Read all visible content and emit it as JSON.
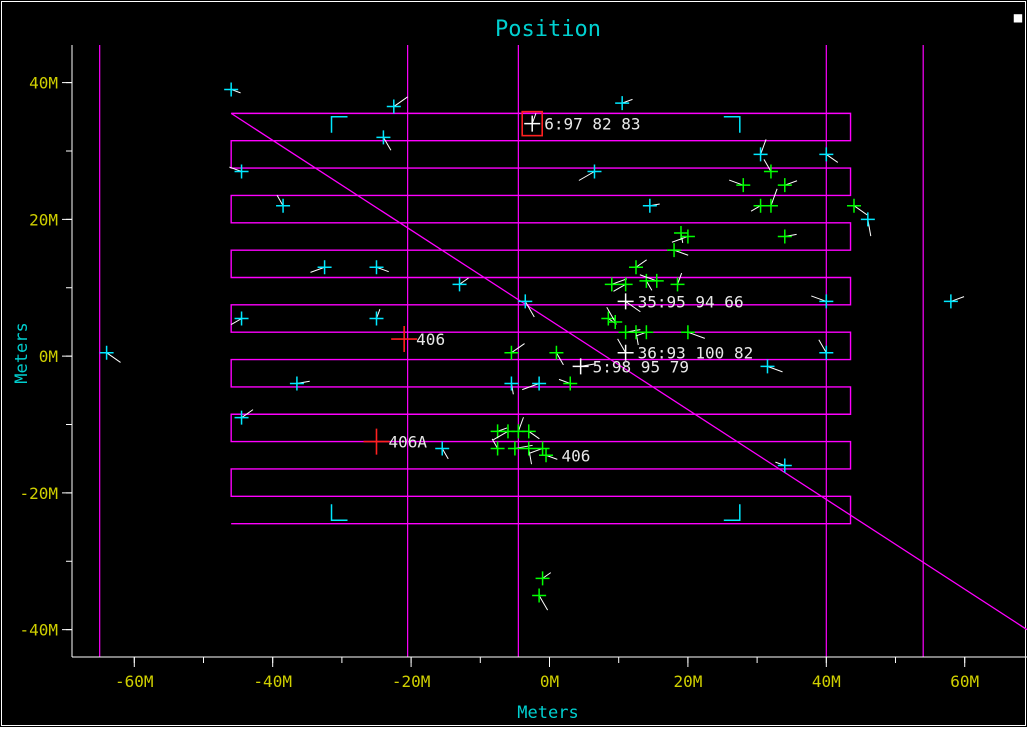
{
  "window": {
    "title": "Position",
    "close_glyph": "■"
  },
  "colors": {
    "background": "#000000",
    "frame": "#ffffff",
    "title_text": "#00d0d0",
    "axis_label": "#00d0d0",
    "tick_label": "#d0d000",
    "grid": "#ff00ff",
    "marker_cyan": "#00e8ff",
    "marker_green": "#00ff00",
    "marker_white": "#ffffff",
    "marker_red": "#ff2020",
    "trail": "#ffffff"
  },
  "chart_data": {
    "type": "scatter",
    "title": "Position",
    "xlabel": "Meters",
    "ylabel": "Meters",
    "xlim": [
      -69,
      69
    ],
    "ylim": [
      -44,
      45.5
    ],
    "x_ticks": [
      {
        "value": -60,
        "label": "-60M"
      },
      {
        "value": -40,
        "label": "-40M"
      },
      {
        "value": -20,
        "label": "-20M"
      },
      {
        "value": 0,
        "label": "0M"
      },
      {
        "value": 20,
        "label": "20M"
      },
      {
        "value": 40,
        "label": "40M"
      },
      {
        "value": 60,
        "label": "60M"
      }
    ],
    "y_ticks": [
      {
        "value": 40,
        "label": "40M"
      },
      {
        "value": 20,
        "label": "20M"
      },
      {
        "value": 0,
        "label": "0M"
      },
      {
        "value": -20,
        "label": "-20M"
      },
      {
        "value": -40,
        "label": "-40M"
      }
    ],
    "minor_x_step": 10,
    "minor_y_step": 10,
    "vertical_lines": [
      -65,
      -20.5,
      -4.5,
      40,
      54
    ],
    "diagonal_line": [
      [
        -46,
        35.5
      ],
      [
        69,
        -40
      ]
    ],
    "survey_passes": {
      "x_min": -46,
      "x_max": 43.5,
      "y_values": [
        35.5,
        31.5,
        27.5,
        23.5,
        19.5,
        15.5,
        11.5,
        7.5,
        3.5,
        -0.5,
        -4.5,
        -8.5,
        -12.5,
        -16.5,
        -20.5,
        -24.5
      ],
      "start": "left",
      "open_ends": [
        "right",
        "left",
        "right",
        "left",
        "right",
        "left",
        "right",
        "left",
        "right",
        "left",
        "right",
        "left",
        "right",
        "left",
        "right"
      ]
    },
    "corner_brackets": [
      {
        "x": -31.5,
        "y": 35,
        "corner": "top-left"
      },
      {
        "x": 27.5,
        "y": 35,
        "corner": "top-right"
      },
      {
        "x": -31.5,
        "y": -24,
        "corner": "bottom-left"
      },
      {
        "x": 27.5,
        "y": -24,
        "corner": "bottom-right"
      }
    ],
    "series": [
      {
        "color": "cyan",
        "points": [
          [
            -46,
            39
          ],
          [
            -22.5,
            36.5
          ],
          [
            -24,
            32
          ],
          [
            -44.5,
            27
          ],
          [
            10.5,
            37
          ],
          [
            6.5,
            27
          ],
          [
            30.5,
            29.5
          ],
          [
            40,
            29.5
          ],
          [
            -38.5,
            22
          ],
          [
            14.5,
            22
          ],
          [
            46,
            20
          ],
          [
            -32.5,
            13
          ],
          [
            -25,
            13
          ],
          [
            -13,
            10.5
          ],
          [
            -3.5,
            8
          ],
          [
            40,
            8
          ],
          [
            58,
            8
          ],
          [
            -44.5,
            5.5
          ],
          [
            -25,
            5.5
          ],
          [
            -64,
            0.5
          ],
          [
            40,
            0.5
          ],
          [
            -36.5,
            -4
          ],
          [
            -5.5,
            -4
          ],
          [
            -1.5,
            -4
          ],
          [
            31.5,
            -1.5
          ],
          [
            -44.5,
            -9
          ],
          [
            -15.5,
            -13.5
          ],
          [
            34,
            -16
          ]
        ]
      },
      {
        "color": "green",
        "points": [
          [
            28,
            25
          ],
          [
            34,
            25
          ],
          [
            30.5,
            22
          ],
          [
            32,
            22
          ],
          [
            44,
            22
          ],
          [
            32,
            27
          ],
          [
            34,
            17.5
          ],
          [
            19,
            18
          ],
          [
            20,
            17.5
          ],
          [
            18,
            15.5
          ],
          [
            12.5,
            13
          ],
          [
            14,
            11
          ],
          [
            15.5,
            11
          ],
          [
            9,
            10.5
          ],
          [
            11,
            10.5
          ],
          [
            18.5,
            10.5
          ],
          [
            8.5,
            5.5
          ],
          [
            9.5,
            5
          ],
          [
            11,
            3.5
          ],
          [
            12.5,
            3.5
          ],
          [
            14,
            3.5
          ],
          [
            20,
            3.5
          ],
          [
            -5.5,
            0.5
          ],
          [
            1,
            0.5
          ],
          [
            3,
            -4
          ],
          [
            -7.5,
            -11
          ],
          [
            -6,
            -11
          ],
          [
            -4.5,
            -11
          ],
          [
            -3,
            -11
          ],
          [
            -7.5,
            -13.5
          ],
          [
            -5,
            -13.5
          ],
          [
            -3,
            -13.5
          ],
          [
            -1,
            -13.5
          ],
          [
            -0.5,
            -14.5
          ],
          [
            -1,
            -32.5
          ],
          [
            -1.5,
            -35
          ]
        ]
      },
      {
        "color": "white",
        "points": [
          [
            -2.5,
            34
          ],
          [
            11,
            8
          ],
          [
            11,
            0.5
          ],
          [
            4.5,
            -1.5
          ]
        ]
      },
      {
        "color": "red",
        "points": [
          [
            -21,
            2.5
          ],
          [
            -25,
            -12.5
          ]
        ]
      }
    ],
    "annotations": [
      {
        "text": "6:97 82 83",
        "x": -2.5,
        "y": 34
      },
      {
        "text": "35:95 94 66",
        "x": 11,
        "y": 8
      },
      {
        "text": "36:93 100 82",
        "x": 11,
        "y": 0.5
      },
      {
        "text": "5:98 95 79",
        "x": 4.5,
        "y": -1.5
      },
      {
        "text": "406",
        "x": -21,
        "y": 2.5
      },
      {
        "text": "406A",
        "x": -25,
        "y": -12.5
      },
      {
        "text": "406",
        "x": 0,
        "y": -14.5
      }
    ]
  }
}
